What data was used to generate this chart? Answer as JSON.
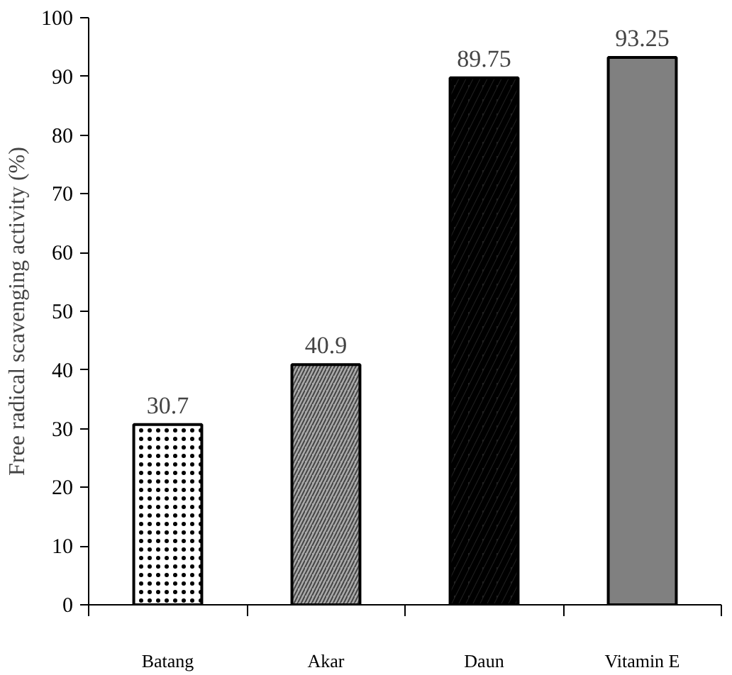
{
  "chart_data": {
    "type": "bar",
    "ylabel": "Free radical scavenging activity (%)",
    "categories": [
      "Batang",
      "Akar",
      "Daun",
      "Vitamin E"
    ],
    "values": [
      30.7,
      40.9,
      89.75,
      93.25
    ],
    "colors": [
      "#ffffff",
      "#aaaaaa",
      "#222222",
      "#808080"
    ],
    "ylim": [
      0,
      100
    ],
    "yticks": [
      0,
      10,
      20,
      30,
      40,
      50,
      60,
      70,
      80,
      90,
      100
    ],
    "grid": false,
    "data_labels": true
  }
}
